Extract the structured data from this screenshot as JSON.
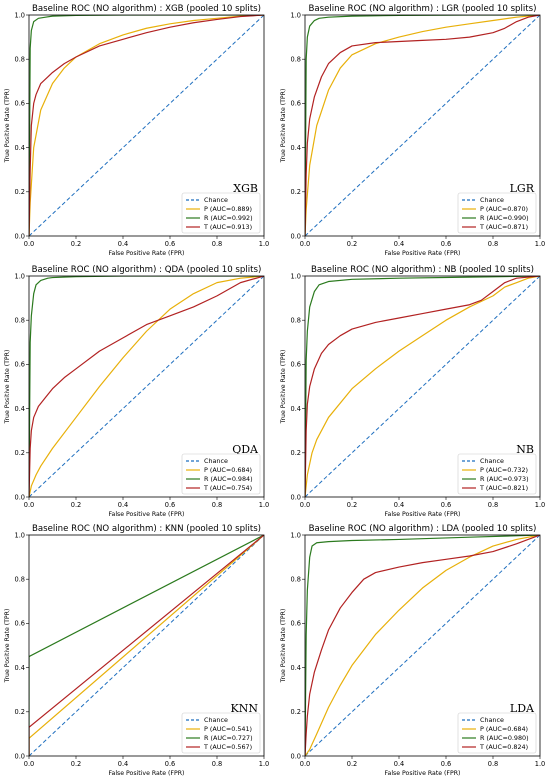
{
  "chart_data": [
    {
      "type": "line",
      "title": "Baseline ROC (NO algorithm) : XGB (pooled 10 splits)",
      "xlabel": "False Positive Rate (FPR)",
      "ylabel": "True Positive Rate (TPR)",
      "model_label": "XGB",
      "xlim": [
        0,
        1
      ],
      "ylim": [
        0,
        1
      ],
      "xticks": [
        "0.0",
        "0.2",
        "0.4",
        "0.6",
        "0.8",
        "1.0"
      ],
      "yticks": [
        "0.0",
        "0.2",
        "0.4",
        "0.6",
        "0.8",
        "1.0"
      ],
      "legend_position": "bottom-right",
      "chance_label": "Chance",
      "series": [
        {
          "name": "P (AUC=0.889)",
          "color": "#e8b00a",
          "x": [
            0,
            0.005,
            0.02,
            0.05,
            0.1,
            0.15,
            0.2,
            0.3,
            0.4,
            0.5,
            0.6,
            0.7,
            0.8,
            0.9,
            1.0
          ],
          "y": [
            0,
            0.15,
            0.4,
            0.57,
            0.69,
            0.76,
            0.81,
            0.87,
            0.91,
            0.94,
            0.96,
            0.975,
            0.985,
            0.995,
            1.0
          ]
        },
        {
          "name": "R (AUC=0.992)",
          "color": "#2b7a1e",
          "x": [
            0,
            0.005,
            0.01,
            0.02,
            0.04,
            0.07,
            0.1,
            0.2,
            0.4,
            0.7,
            1.0
          ],
          "y": [
            0,
            0.85,
            0.93,
            0.97,
            0.985,
            0.99,
            0.995,
            0.998,
            1.0,
            1.0,
            1.0
          ]
        },
        {
          "name": "T (AUC=0.913)",
          "color": "#b22222",
          "x": [
            0,
            0.005,
            0.01,
            0.02,
            0.03,
            0.05,
            0.08,
            0.1,
            0.15,
            0.2,
            0.3,
            0.4,
            0.5,
            0.6,
            0.7,
            0.8,
            0.9,
            1.0
          ],
          "y": [
            0,
            0.3,
            0.5,
            0.6,
            0.64,
            0.69,
            0.72,
            0.74,
            0.78,
            0.81,
            0.86,
            0.89,
            0.92,
            0.945,
            0.965,
            0.98,
            0.993,
            1.0
          ]
        }
      ]
    },
    {
      "type": "line",
      "title": "Baseline ROC (NO algorithm) : LGR (pooled 10 splits)",
      "xlabel": "False Positive Rate (FPR)",
      "ylabel": "True Positive Rate (TPR)",
      "model_label": "LGR",
      "xlim": [
        0,
        1
      ],
      "ylim": [
        0,
        1
      ],
      "xticks": [
        "0.0",
        "0.2",
        "0.4",
        "0.6",
        "0.8",
        "1.0"
      ],
      "yticks": [
        "0.0",
        "0.2",
        "0.4",
        "0.6",
        "0.8",
        "1.0"
      ],
      "legend_position": "bottom-right",
      "chance_label": "Chance",
      "series": [
        {
          "name": "P (AUC=0.870)",
          "color": "#e8b00a",
          "x": [
            0,
            0.005,
            0.02,
            0.05,
            0.1,
            0.15,
            0.2,
            0.3,
            0.4,
            0.5,
            0.6,
            0.7,
            0.8,
            0.9,
            1.0
          ],
          "y": [
            0,
            0.12,
            0.32,
            0.5,
            0.66,
            0.76,
            0.82,
            0.87,
            0.9,
            0.925,
            0.945,
            0.96,
            0.975,
            0.99,
            1.0
          ]
        },
        {
          "name": "R (AUC=0.990)",
          "color": "#2b7a1e",
          "x": [
            0,
            0.005,
            0.01,
            0.02,
            0.04,
            0.06,
            0.1,
            0.2,
            0.4,
            0.7,
            1.0
          ],
          "y": [
            0,
            0.8,
            0.9,
            0.95,
            0.975,
            0.985,
            0.99,
            0.995,
            0.998,
            1.0,
            1.0
          ]
        },
        {
          "name": "T (AUC=0.871)",
          "color": "#b22222",
          "x": [
            0,
            0.005,
            0.01,
            0.02,
            0.04,
            0.07,
            0.1,
            0.15,
            0.2,
            0.3,
            0.4,
            0.5,
            0.6,
            0.7,
            0.8,
            0.85,
            0.9,
            0.95,
            1.0
          ],
          "y": [
            0,
            0.28,
            0.42,
            0.53,
            0.63,
            0.72,
            0.78,
            0.83,
            0.86,
            0.875,
            0.88,
            0.885,
            0.89,
            0.9,
            0.92,
            0.94,
            0.97,
            0.99,
            1.0
          ]
        }
      ]
    },
    {
      "type": "line",
      "title": "Baseline ROC (NO algorithm) : QDA (pooled 10 splits)",
      "xlabel": "False Positive Rate (FPR)",
      "ylabel": "True Positive Rate (TPR)",
      "model_label": "QDA",
      "xlim": [
        0,
        1
      ],
      "ylim": [
        0,
        1
      ],
      "xticks": [
        "0.0",
        "0.2",
        "0.4",
        "0.6",
        "0.8",
        "1.0"
      ],
      "yticks": [
        "0.0",
        "0.2",
        "0.4",
        "0.6",
        "0.8",
        "1.0"
      ],
      "legend_position": "bottom-right",
      "chance_label": "Chance",
      "series": [
        {
          "name": "P (AUC=0.684)",
          "color": "#e8b00a",
          "x": [
            0,
            0.01,
            0.03,
            0.05,
            0.1,
            0.2,
            0.3,
            0.4,
            0.5,
            0.6,
            0.7,
            0.8,
            0.9,
            1.0
          ],
          "y": [
            0,
            0.05,
            0.1,
            0.14,
            0.22,
            0.36,
            0.5,
            0.63,
            0.75,
            0.85,
            0.92,
            0.97,
            0.99,
            1.0
          ]
        },
        {
          "name": "R (AUC=0.984)",
          "color": "#2b7a1e",
          "x": [
            0,
            0.005,
            0.01,
            0.02,
            0.03,
            0.05,
            0.08,
            0.1,
            0.2,
            0.4,
            0.7,
            1.0
          ],
          "y": [
            0,
            0.7,
            0.82,
            0.92,
            0.96,
            0.98,
            0.99,
            0.993,
            0.997,
            1.0,
            1.0,
            1.0
          ]
        },
        {
          "name": "T (AUC=0.754)",
          "color": "#b22222",
          "x": [
            0,
            0.005,
            0.01,
            0.02,
            0.04,
            0.07,
            0.1,
            0.15,
            0.2,
            0.3,
            0.4,
            0.5,
            0.6,
            0.7,
            0.8,
            0.9,
            1.0
          ],
          "y": [
            0,
            0.22,
            0.3,
            0.36,
            0.41,
            0.45,
            0.49,
            0.54,
            0.58,
            0.66,
            0.72,
            0.78,
            0.82,
            0.86,
            0.91,
            0.97,
            1.0
          ]
        }
      ]
    },
    {
      "type": "line",
      "title": "Baseline ROC (NO algorithm) : NB (pooled 10 splits)",
      "xlabel": "False Positive Rate (FPR)",
      "ylabel": "True Positive Rate (TPR)",
      "model_label": "NB",
      "xlim": [
        0,
        1
      ],
      "ylim": [
        0,
        1
      ],
      "xticks": [
        "0.0",
        "0.2",
        "0.4",
        "0.6",
        "0.8",
        "1.0"
      ],
      "yticks": [
        "0.0",
        "0.2",
        "0.4",
        "0.6",
        "0.8",
        "1.0"
      ],
      "legend_position": "bottom-right",
      "chance_label": "Chance",
      "series": [
        {
          "name": "P (AUC=0.732)",
          "color": "#e8b00a",
          "x": [
            0,
            0.01,
            0.03,
            0.05,
            0.1,
            0.2,
            0.3,
            0.4,
            0.5,
            0.6,
            0.7,
            0.8,
            0.85,
            0.9,
            0.95,
            1.0
          ],
          "y": [
            0,
            0.1,
            0.2,
            0.26,
            0.36,
            0.49,
            0.58,
            0.66,
            0.73,
            0.8,
            0.86,
            0.91,
            0.95,
            0.97,
            0.99,
            1.0
          ]
        },
        {
          "name": "R (AUC=0.973)",
          "color": "#2b7a1e",
          "x": [
            0,
            0.005,
            0.01,
            0.02,
            0.04,
            0.06,
            0.1,
            0.2,
            0.4,
            0.7,
            1.0
          ],
          "y": [
            0,
            0.62,
            0.75,
            0.86,
            0.93,
            0.96,
            0.975,
            0.985,
            0.99,
            0.995,
            1.0
          ]
        },
        {
          "name": "T (AUC=0.821)",
          "color": "#b22222",
          "x": [
            0,
            0.005,
            0.01,
            0.02,
            0.04,
            0.07,
            0.1,
            0.15,
            0.2,
            0.3,
            0.4,
            0.5,
            0.6,
            0.7,
            0.75,
            0.8,
            0.85,
            0.9,
            1.0
          ],
          "y": [
            0,
            0.3,
            0.42,
            0.5,
            0.58,
            0.65,
            0.69,
            0.73,
            0.76,
            0.79,
            0.81,
            0.83,
            0.85,
            0.87,
            0.89,
            0.93,
            0.97,
            0.99,
            1.0
          ]
        }
      ]
    },
    {
      "type": "line",
      "title": "Baseline ROC (NO algorithm) : KNN (pooled 10 splits)",
      "xlabel": "False Positive Rate (FPR)",
      "ylabel": "True Positive Rate (TPR)",
      "model_label": "KNN",
      "xlim": [
        0,
        1
      ],
      "ylim": [
        0,
        1
      ],
      "xticks": [
        "0.0",
        "0.2",
        "0.4",
        "0.6",
        "0.8",
        "1.0"
      ],
      "yticks": [
        "0.0",
        "0.2",
        "0.4",
        "0.6",
        "0.8",
        "1.0"
      ],
      "legend_position": "bottom-right",
      "chance_label": "Chance",
      "series": [
        {
          "name": "P (AUC=0.541)",
          "color": "#e8b00a",
          "x": [
            0,
            0,
            1.0
          ],
          "y": [
            0,
            0.08,
            1.0
          ]
        },
        {
          "name": "R (AUC=0.727)",
          "color": "#2b7a1e",
          "x": [
            0,
            0,
            1.0
          ],
          "y": [
            0,
            0.45,
            1.0
          ]
        },
        {
          "name": "T (AUC=0.567)",
          "color": "#b22222",
          "x": [
            0,
            0,
            1.0
          ],
          "y": [
            0,
            0.13,
            1.0
          ]
        }
      ]
    },
    {
      "type": "line",
      "title": "Baseline ROC (NO algorithm) : LDA (pooled 10 splits)",
      "xlabel": "False Positive Rate (FPR)",
      "ylabel": "True Positive Rate (TPR)",
      "model_label": "LDA",
      "xlim": [
        0,
        1
      ],
      "ylim": [
        0,
        1
      ],
      "xticks": [
        "0.0",
        "0.2",
        "0.4",
        "0.6",
        "0.8",
        "1.0"
      ],
      "yticks": [
        "0.0",
        "0.2",
        "0.4",
        "0.6",
        "0.8",
        "1.0"
      ],
      "legend_position": "bottom-right",
      "chance_label": "Chance",
      "series": [
        {
          "name": "P (AUC=0.684)",
          "color": "#e8b00a",
          "x": [
            0,
            0.02,
            0.05,
            0.1,
            0.15,
            0.2,
            0.3,
            0.4,
            0.5,
            0.6,
            0.7,
            0.8,
            0.9,
            1.0
          ],
          "y": [
            0,
            0.03,
            0.1,
            0.22,
            0.32,
            0.41,
            0.55,
            0.66,
            0.76,
            0.84,
            0.9,
            0.95,
            0.98,
            1.0
          ]
        },
        {
          "name": "R (AUC=0.980)",
          "color": "#2b7a1e",
          "x": [
            0,
            0.005,
            0.01,
            0.02,
            0.03,
            0.05,
            0.1,
            0.2,
            0.4,
            0.7,
            1.0
          ],
          "y": [
            0,
            0.55,
            0.75,
            0.9,
            0.95,
            0.965,
            0.97,
            0.975,
            0.98,
            0.99,
            1.0
          ]
        },
        {
          "name": "T (AUC=0.824)",
          "color": "#b22222",
          "x": [
            0,
            0.005,
            0.01,
            0.02,
            0.04,
            0.07,
            0.1,
            0.15,
            0.2,
            0.25,
            0.3,
            0.4,
            0.5,
            0.6,
            0.7,
            0.8,
            0.9,
            1.0
          ],
          "y": [
            0,
            0.1,
            0.18,
            0.28,
            0.38,
            0.48,
            0.57,
            0.67,
            0.74,
            0.8,
            0.83,
            0.855,
            0.875,
            0.89,
            0.905,
            0.925,
            0.96,
            1.0
          ]
        }
      ]
    }
  ]
}
